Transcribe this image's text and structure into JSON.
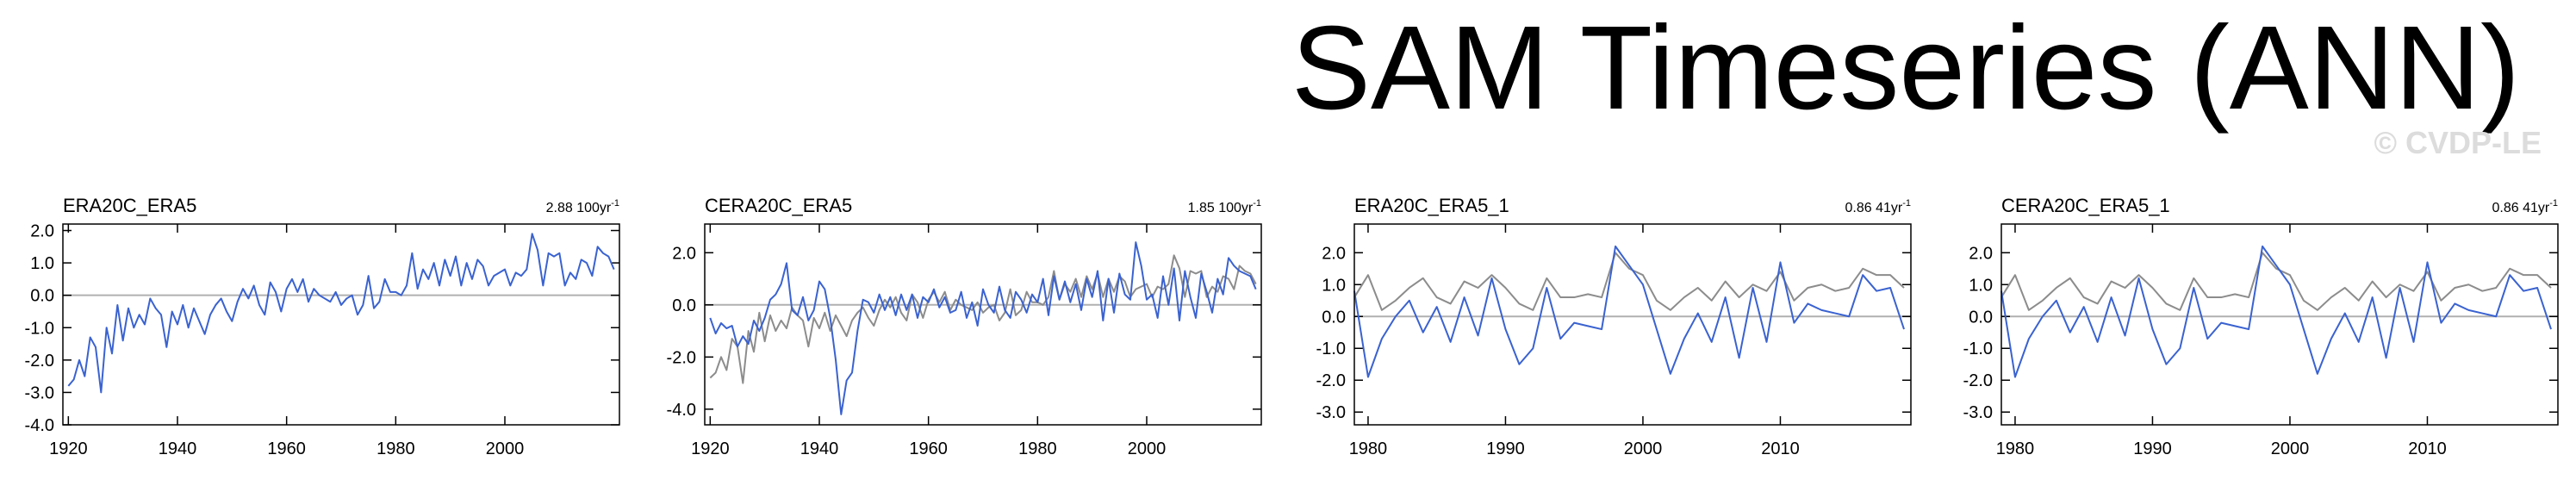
{
  "title": "SAM Timeseries (ANN)",
  "watermark": "© CVDP-LE",
  "chart_data": [
    {
      "type": "line",
      "title": "ERA20C_ERA5",
      "trend_label": "2.88 100yr",
      "trend_exponent": "-1",
      "x": [
        1920,
        1921,
        1922,
        1923,
        1924,
        1925,
        1926,
        1927,
        1928,
        1929,
        1930,
        1931,
        1932,
        1933,
        1934,
        1935,
        1936,
        1937,
        1938,
        1939,
        1940,
        1941,
        1942,
        1943,
        1944,
        1945,
        1946,
        1947,
        1948,
        1949,
        1950,
        1951,
        1952,
        1953,
        1954,
        1955,
        1956,
        1957,
        1958,
        1959,
        1960,
        1961,
        1962,
        1963,
        1964,
        1965,
        1966,
        1967,
        1968,
        1969,
        1970,
        1971,
        1972,
        1973,
        1974,
        1975,
        1976,
        1977,
        1978,
        1979,
        1980,
        1981,
        1982,
        1983,
        1984,
        1985,
        1986,
        1987,
        1988,
        1989,
        1990,
        1991,
        1992,
        1993,
        1994,
        1995,
        1996,
        1997,
        1998,
        1999,
        2000,
        2001,
        2002,
        2003,
        2004,
        2005,
        2006,
        2007,
        2008,
        2009,
        2010,
        2011,
        2012,
        2013,
        2014,
        2015,
        2016,
        2017,
        2018,
        2019,
        2020
      ],
      "series": [
        {
          "color": "#3a62d0",
          "values": [
            -2.8,
            -2.6,
            -2.0,
            -2.5,
            -1.3,
            -1.6,
            -3.0,
            -1.0,
            -1.8,
            -0.3,
            -1.4,
            -0.4,
            -1.0,
            -0.6,
            -0.9,
            -0.1,
            -0.4,
            -0.6,
            -1.6,
            -0.5,
            -0.9,
            -0.3,
            -1.0,
            -0.4,
            -0.8,
            -1.2,
            -0.6,
            -0.3,
            -0.1,
            -0.5,
            -0.8,
            -0.2,
            0.2,
            -0.1,
            0.3,
            -0.3,
            -0.6,
            0.4,
            0.1,
            -0.5,
            0.2,
            0.5,
            0.1,
            0.5,
            -0.2,
            0.2,
            0.0,
            -0.1,
            -0.2,
            0.1,
            -0.3,
            -0.1,
            0.0,
            -0.6,
            -0.3,
            0.6,
            -0.4,
            -0.2,
            0.5,
            0.1,
            0.1,
            0.0,
            0.3,
            1.3,
            0.2,
            0.8,
            0.5,
            1.0,
            0.3,
            1.1,
            0.6,
            1.2,
            0.3,
            1.0,
            0.5,
            1.1,
            0.9,
            0.3,
            0.6,
            0.7,
            0.8,
            0.3,
            0.7,
            0.6,
            0.8,
            1.9,
            1.4,
            0.3,
            1.3,
            1.2,
            1.3,
            0.3,
            0.7,
            0.5,
            1.1,
            1.0,
            0.6,
            1.5,
            1.3,
            1.2,
            0.8
          ]
        }
      ],
      "xlim": [
        1919,
        2021
      ],
      "ylim": [
        -4.0,
        2.2
      ],
      "xticks": [
        1920,
        1940,
        1960,
        1980,
        2000
      ],
      "yticks": [
        {
          "value": 2,
          "label": "2.0"
        },
        {
          "value": 1,
          "label": "1.0"
        },
        {
          "value": 0,
          "label": "0.0"
        },
        {
          "value": -1,
          "label": "-1.0"
        },
        {
          "value": -2,
          "label": "-2.0"
        },
        {
          "value": -3,
          "label": "-3.0"
        },
        {
          "value": -4,
          "label": "-4.0"
        }
      ]
    },
    {
      "type": "line",
      "title": "CERA20C_ERA5",
      "trend_label": "1.85 100yr",
      "trend_exponent": "-1",
      "x": [
        1920,
        1921,
        1922,
        1923,
        1924,
        1925,
        1926,
        1927,
        1928,
        1929,
        1930,
        1931,
        1932,
        1933,
        1934,
        1935,
        1936,
        1937,
        1938,
        1939,
        1940,
        1941,
        1942,
        1943,
        1944,
        1945,
        1946,
        1947,
        1948,
        1949,
        1950,
        1951,
        1952,
        1953,
        1954,
        1955,
        1956,
        1957,
        1958,
        1959,
        1960,
        1961,
        1962,
        1963,
        1964,
        1965,
        1966,
        1967,
        1968,
        1969,
        1970,
        1971,
        1972,
        1973,
        1974,
        1975,
        1976,
        1977,
        1978,
        1979,
        1980,
        1981,
        1982,
        1983,
        1984,
        1985,
        1986,
        1987,
        1988,
        1989,
        1990,
        1991,
        1992,
        1993,
        1994,
        1995,
        1996,
        1997,
        1998,
        1999,
        2000,
        2001,
        2002,
        2003,
        2004,
        2005,
        2006,
        2007,
        2008,
        2009,
        2010,
        2011,
        2012,
        2013,
        2014,
        2015,
        2016,
        2017,
        2018,
        2019,
        2020
      ],
      "series": [
        {
          "color": "#8c8c8c",
          "values": [
            -2.8,
            -2.6,
            -2.0,
            -2.5,
            -1.3,
            -1.6,
            -3.0,
            -1.0,
            -1.8,
            -0.3,
            -1.4,
            -0.4,
            -1.0,
            -0.6,
            -0.9,
            -0.1,
            -0.4,
            -0.6,
            -1.6,
            -0.5,
            -0.9,
            -0.3,
            -1.0,
            -0.4,
            -0.8,
            -1.2,
            -0.6,
            -0.3,
            -0.1,
            -0.5,
            -0.8,
            -0.2,
            0.2,
            -0.1,
            0.3,
            -0.3,
            -0.6,
            0.4,
            0.1,
            -0.5,
            0.2,
            0.5,
            0.1,
            0.5,
            -0.2,
            0.2,
            0.0,
            -0.1,
            -0.2,
            0.1,
            -0.3,
            -0.1,
            0.0,
            -0.6,
            -0.3,
            0.6,
            -0.4,
            -0.2,
            0.5,
            0.1,
            0.1,
            0.0,
            0.3,
            1.3,
            0.2,
            0.8,
            0.5,
            1.0,
            0.3,
            1.1,
            0.6,
            1.2,
            0.3,
            1.0,
            0.5,
            1.1,
            0.9,
            0.3,
            0.6,
            0.7,
            0.8,
            0.3,
            0.7,
            0.6,
            0.8,
            1.9,
            1.4,
            0.3,
            1.3,
            1.2,
            1.3,
            0.3,
            0.7,
            0.5,
            1.1,
            1.0,
            0.6,
            1.5,
            1.3,
            1.2,
            0.8
          ]
        },
        {
          "color": "#3a62d0",
          "values": [
            -0.5,
            -1.1,
            -0.7,
            -0.9,
            -0.8,
            -1.6,
            -1.2,
            -1.5,
            -0.6,
            -1.0,
            -0.5,
            0.2,
            0.4,
            0.8,
            1.6,
            -0.2,
            -0.4,
            0.3,
            -0.6,
            -0.2,
            0.9,
            0.6,
            -0.5,
            -2.1,
            -4.2,
            -2.9,
            -2.6,
            -1.0,
            0.2,
            0.1,
            -0.3,
            0.4,
            -0.2,
            0.3,
            -0.4,
            0.4,
            -0.2,
            0.4,
            -0.5,
            0.3,
            0.1,
            0.6,
            -0.1,
            0.3,
            -0.3,
            -0.2,
            0.5,
            -0.5,
            0.1,
            -0.8,
            0.6,
            0.0,
            -0.3,
            0.7,
            -0.2,
            -0.5,
            0.5,
            0.2,
            -0.3,
            0.4,
            0.1,
            1.0,
            -0.4,
            1.1,
            0.2,
            0.9,
            0.1,
            0.8,
            -0.2,
            1.0,
            0.3,
            1.3,
            -0.6,
            1.0,
            -0.3,
            1.2,
            0.4,
            0.2,
            2.4,
            1.5,
            0.2,
            0.4,
            -0.5,
            1.1,
            0.0,
            1.4,
            -0.6,
            1.3,
            0.3,
            -0.5,
            1.2,
            0.5,
            -0.3,
            1.0,
            0.4,
            1.8,
            1.5,
            1.3,
            1.2,
            1.1,
            0.6
          ]
        }
      ],
      "xlim": [
        1919,
        2021
      ],
      "ylim": [
        -4.6,
        3.1
      ],
      "xticks": [
        1920,
        1940,
        1960,
        1980,
        2000
      ],
      "yticks": [
        {
          "value": 2,
          "label": "2.0"
        },
        {
          "value": 0,
          "label": "0.0"
        },
        {
          "value": -2,
          "label": "-2.0"
        },
        {
          "value": -4,
          "label": "-4.0"
        }
      ]
    },
    {
      "type": "line",
      "title": "ERA20C_ERA5_1",
      "trend_label": "0.86 41yr",
      "trend_exponent": "-1",
      "x": [
        1979,
        1980,
        1981,
        1982,
        1983,
        1984,
        1985,
        1986,
        1987,
        1988,
        1989,
        1990,
        1991,
        1992,
        1993,
        1994,
        1995,
        1996,
        1997,
        1998,
        1999,
        2000,
        2001,
        2002,
        2003,
        2004,
        2005,
        2006,
        2007,
        2008,
        2009,
        2010,
        2011,
        2012,
        2013,
        2014,
        2015,
        2016,
        2017,
        2018,
        2019
      ],
      "series": [
        {
          "color": "#8c8c8c",
          "values": [
            0.6,
            1.3,
            0.2,
            0.5,
            0.9,
            1.2,
            0.6,
            0.4,
            1.1,
            0.9,
            1.3,
            0.9,
            0.4,
            0.2,
            1.2,
            0.6,
            0.6,
            0.7,
            0.6,
            2.0,
            1.5,
            1.3,
            0.5,
            0.2,
            0.6,
            0.9,
            0.5,
            1.1,
            0.6,
            1.0,
            0.8,
            1.4,
            0.5,
            0.9,
            1.0,
            0.8,
            0.9,
            1.5,
            1.3,
            1.3,
            0.9
          ]
        },
        {
          "color": "#3a62d0",
          "values": [
            0.8,
            -1.9,
            -0.7,
            0.0,
            0.5,
            -0.5,
            0.3,
            -0.8,
            0.6,
            -0.6,
            1.2,
            -0.4,
            -1.5,
            -1.0,
            0.9,
            -0.7,
            -0.2,
            -0.3,
            -0.4,
            2.2,
            1.6,
            1.0,
            -0.4,
            -1.8,
            -0.7,
            0.1,
            -0.8,
            0.6,
            -1.3,
            0.9,
            -0.8,
            1.7,
            -0.2,
            0.4,
            0.2,
            0.1,
            0.0,
            1.3,
            0.8,
            0.9,
            -0.4
          ]
        }
      ],
      "xlim": [
        1979,
        2019.5
      ],
      "ylim": [
        -3.4,
        2.9
      ],
      "xticks": [
        1980,
        1990,
        2000,
        2010
      ],
      "yticks": [
        {
          "value": 2,
          "label": "2.0"
        },
        {
          "value": 1,
          "label": "1.0"
        },
        {
          "value": 0,
          "label": "0.0"
        },
        {
          "value": -1,
          "label": "-1.0"
        },
        {
          "value": -2,
          "label": "-2.0"
        },
        {
          "value": -3,
          "label": "-3.0"
        }
      ]
    },
    {
      "type": "line",
      "title": "CERA20C_ERA5_1",
      "trend_label": "0.86 41yr",
      "trend_exponent": "-1",
      "x": [
        1979,
        1980,
        1981,
        1982,
        1983,
        1984,
        1985,
        1986,
        1987,
        1988,
        1989,
        1990,
        1991,
        1992,
        1993,
        1994,
        1995,
        1996,
        1997,
        1998,
        1999,
        2000,
        2001,
        2002,
        2003,
        2004,
        2005,
        2006,
        2007,
        2008,
        2009,
        2010,
        2011,
        2012,
        2013,
        2014,
        2015,
        2016,
        2017,
        2018,
        2019
      ],
      "series": [
        {
          "color": "#8c8c8c",
          "values": [
            0.6,
            1.3,
            0.2,
            0.5,
            0.9,
            1.2,
            0.6,
            0.4,
            1.1,
            0.9,
            1.3,
            0.9,
            0.4,
            0.2,
            1.2,
            0.6,
            0.6,
            0.7,
            0.6,
            2.0,
            1.5,
            1.3,
            0.5,
            0.2,
            0.6,
            0.9,
            0.5,
            1.1,
            0.6,
            1.0,
            0.8,
            1.4,
            0.5,
            0.9,
            1.0,
            0.8,
            0.9,
            1.5,
            1.3,
            1.3,
            0.9
          ]
        },
        {
          "color": "#3a62d0",
          "values": [
            0.8,
            -1.9,
            -0.7,
            0.0,
            0.5,
            -0.5,
            0.3,
            -0.8,
            0.6,
            -0.6,
            1.2,
            -0.4,
            -1.5,
            -1.0,
            0.9,
            -0.7,
            -0.2,
            -0.3,
            -0.4,
            2.2,
            1.6,
            1.0,
            -0.4,
            -1.8,
            -0.7,
            0.1,
            -0.8,
            0.6,
            -1.3,
            0.9,
            -0.8,
            1.7,
            -0.2,
            0.4,
            0.2,
            0.1,
            0.0,
            1.3,
            0.8,
            0.9,
            -0.4
          ]
        }
      ],
      "xlim": [
        1979,
        2019.5
      ],
      "ylim": [
        -3.4,
        2.9
      ],
      "xticks": [
        1980,
        1990,
        2000,
        2010
      ],
      "yticks": [
        {
          "value": 2,
          "label": "2.0"
        },
        {
          "value": 1,
          "label": "1.0"
        },
        {
          "value": 0,
          "label": "0.0"
        },
        {
          "value": -1,
          "label": "-1.0"
        },
        {
          "value": -2,
          "label": "-2.0"
        },
        {
          "value": -3,
          "label": "-3.0"
        }
      ]
    }
  ]
}
